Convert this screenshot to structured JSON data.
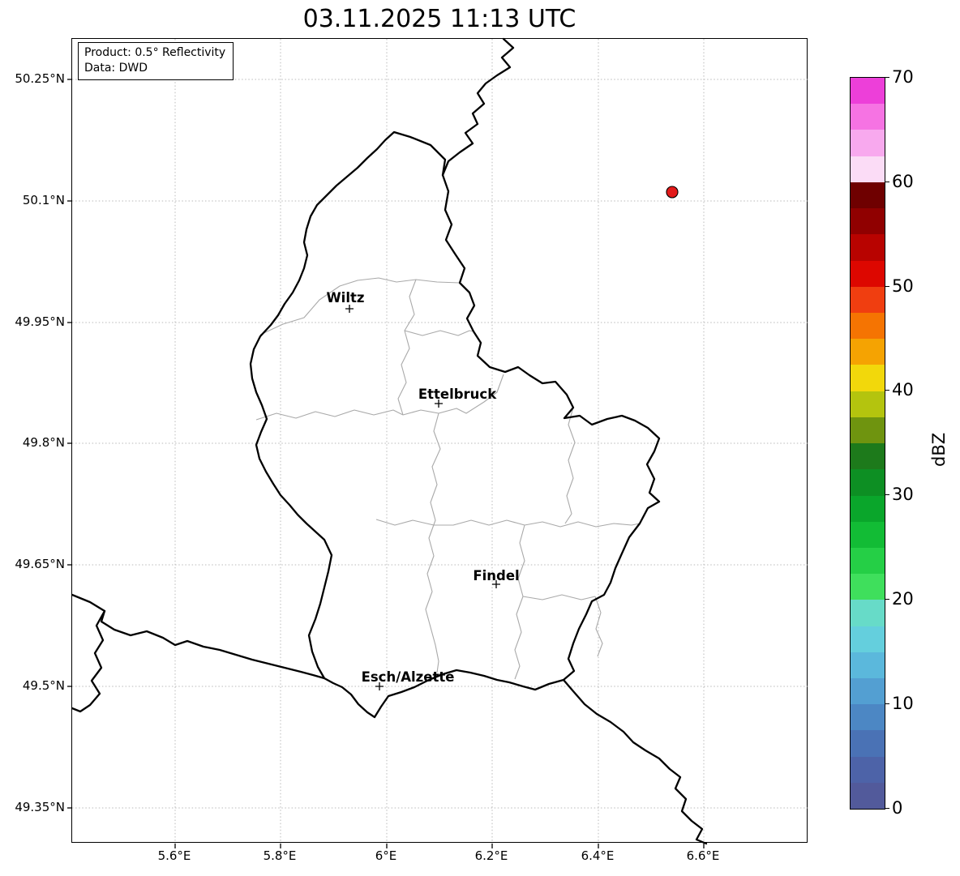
{
  "title": "03.11.2025 11:13 UTC",
  "info_box": {
    "product_line": "Product: 0.5° Reflectivity",
    "data_line": "Data: DWD"
  },
  "map": {
    "country": "Luxembourg",
    "cities": [
      {
        "name": "Wiltz"
      },
      {
        "name": "Ettelbruck"
      },
      {
        "name": "Findel"
      },
      {
        "name": "Esch/Alzette"
      }
    ],
    "radar_echo": {
      "color": "#e31a1a",
      "approx_lon": "6.55°E",
      "approx_lat": "50.11°N"
    }
  },
  "axes": {
    "x_ticks": [
      "5.6°E",
      "5.8°E",
      "6°E",
      "6.2°E",
      "6.4°E",
      "6.6°E"
    ],
    "y_ticks": [
      "50.25°N",
      "50.1°N",
      "49.95°N",
      "49.8°N",
      "49.65°N",
      "49.5°N",
      "49.35°N"
    ]
  },
  "colorbar": {
    "label": "dBZ",
    "ticks": [
      "70",
      "60",
      "50",
      "40",
      "30",
      "20",
      "10",
      "0"
    ],
    "min": 0,
    "max": 70,
    "colors_top_to_bottom": [
      "#ed3fd9",
      "#f673e3",
      "#f8a9ee",
      "#fbdcf6",
      "#6f0000",
      "#900000",
      "#b80300",
      "#dd0700",
      "#f03e10",
      "#f57402",
      "#f5a302",
      "#f2d80b",
      "#b4c40e",
      "#6f940f",
      "#1d7a1b",
      "#0d8f23",
      "#0aa62b",
      "#12bc35",
      "#25cf46",
      "#3fdf5c",
      "#67dbc8",
      "#64cfdd",
      "#5bb8dc",
      "#539fd2",
      "#4c87c4",
      "#4a72b5",
      "#4d63a8",
      "#525a9b"
    ]
  }
}
